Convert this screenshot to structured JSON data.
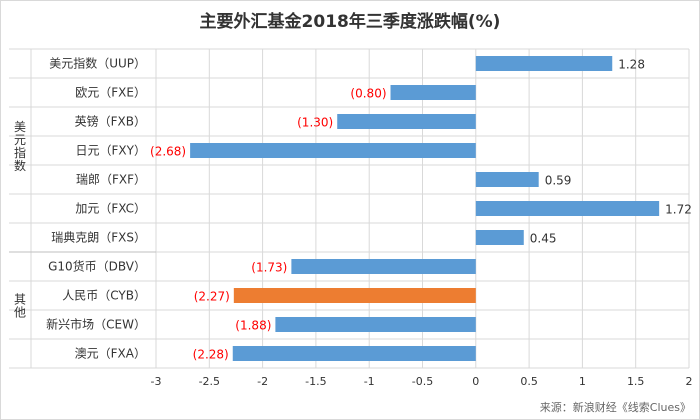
{
  "chart_data": {
    "type": "bar",
    "orientation": "horizontal",
    "title": "主要外汇基金2018年三季度涨跌幅(%)",
    "groups": [
      {
        "label": "美元指数",
        "members": [
          "美元指数（UUP）",
          "欧元（FXE）",
          "英镑（FXB）",
          "日元（FXY）",
          "瑞郎（FXF）",
          "加元（FXC）",
          "瑞典克朗（FXS）"
        ]
      },
      {
        "label": "其他",
        "members": [
          "G10货币（DBV）",
          "人民币（CYB）",
          "新兴市场（CEW）",
          "澳元（FXA）"
        ]
      }
    ],
    "categories": [
      "美元指数（UUP）",
      "欧元（FXE）",
      "英镑（FXB）",
      "日元（FXY）",
      "瑞郎（FXF）",
      "加元（FXC）",
      "瑞典克朗（FXS）",
      "G10货币（DBV）",
      "人民币（CYB）",
      "新兴市场（CEW）",
      "澳元（FXA）"
    ],
    "values": [
      1.28,
      -0.8,
      -1.3,
      -2.68,
      0.59,
      1.72,
      0.45,
      -1.73,
      -2.27,
      -1.88,
      -2.28
    ],
    "value_labels": [
      "1.28",
      "(0.80)",
      "(1.30)",
      "(2.68)",
      "0.59",
      "1.72",
      "0.45",
      "(1.73)",
      "(2.27)",
      "(1.88)",
      "(2.28)"
    ],
    "highlight_category": "人民币（CYB）",
    "xlim": [
      -3,
      2
    ],
    "xticks": [
      -3,
      -2.5,
      -2,
      -1.5,
      -1,
      -0.5,
      0,
      0.5,
      1,
      1.5,
      2
    ],
    "xtick_labels": [
      "-3",
      "-2.5",
      "-2",
      "-1.5",
      "-1",
      "-0.5",
      "0",
      "0.5",
      "1",
      "1.5",
      "2"
    ],
    "grid": "vertical",
    "colors": {
      "bar": "#5b9bd5",
      "highlight": "#ed7d31",
      "positive_label": "#333333",
      "negative_label": "#ff0000",
      "grid": "#d9d9d9"
    }
  },
  "source": "来源：新浪财经《线索Clues》"
}
